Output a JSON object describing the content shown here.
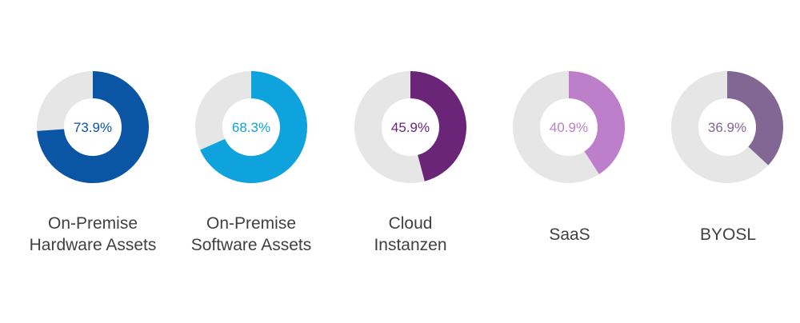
{
  "chart_data": {
    "type": "pie",
    "track_color": "#e6e6e6",
    "categories": [
      "On-Premise Hardware Assets",
      "On-Premise Software Assets",
      "Cloud Instanzen",
      "SaaS",
      "BYOSL"
    ],
    "values": [
      73.9,
      68.3,
      45.9,
      40.9,
      36.9
    ],
    "unit": "%",
    "items": [
      {
        "label_lines": [
          "On-Premise",
          "Hardware Assets"
        ],
        "value": 73.9,
        "value_label": "73.9%",
        "color": "#0a55a4"
      },
      {
        "label_lines": [
          "On-Premise",
          "Software Assets"
        ],
        "value": 68.3,
        "value_label": "68.3%",
        "color": "#0ea3dc"
      },
      {
        "label_lines": [
          "Cloud",
          "Instanzen"
        ],
        "value": 45.9,
        "value_label": "45.9%",
        "color": "#6a2579"
      },
      {
        "label_lines": [
          "SaaS"
        ],
        "value": 40.9,
        "value_label": "40.9%",
        "color": "#bd7fca"
      },
      {
        "label_lines": [
          "BYOSL"
        ],
        "value": 36.9,
        "value_label": "36.9%",
        "color": "#826794"
      }
    ]
  }
}
